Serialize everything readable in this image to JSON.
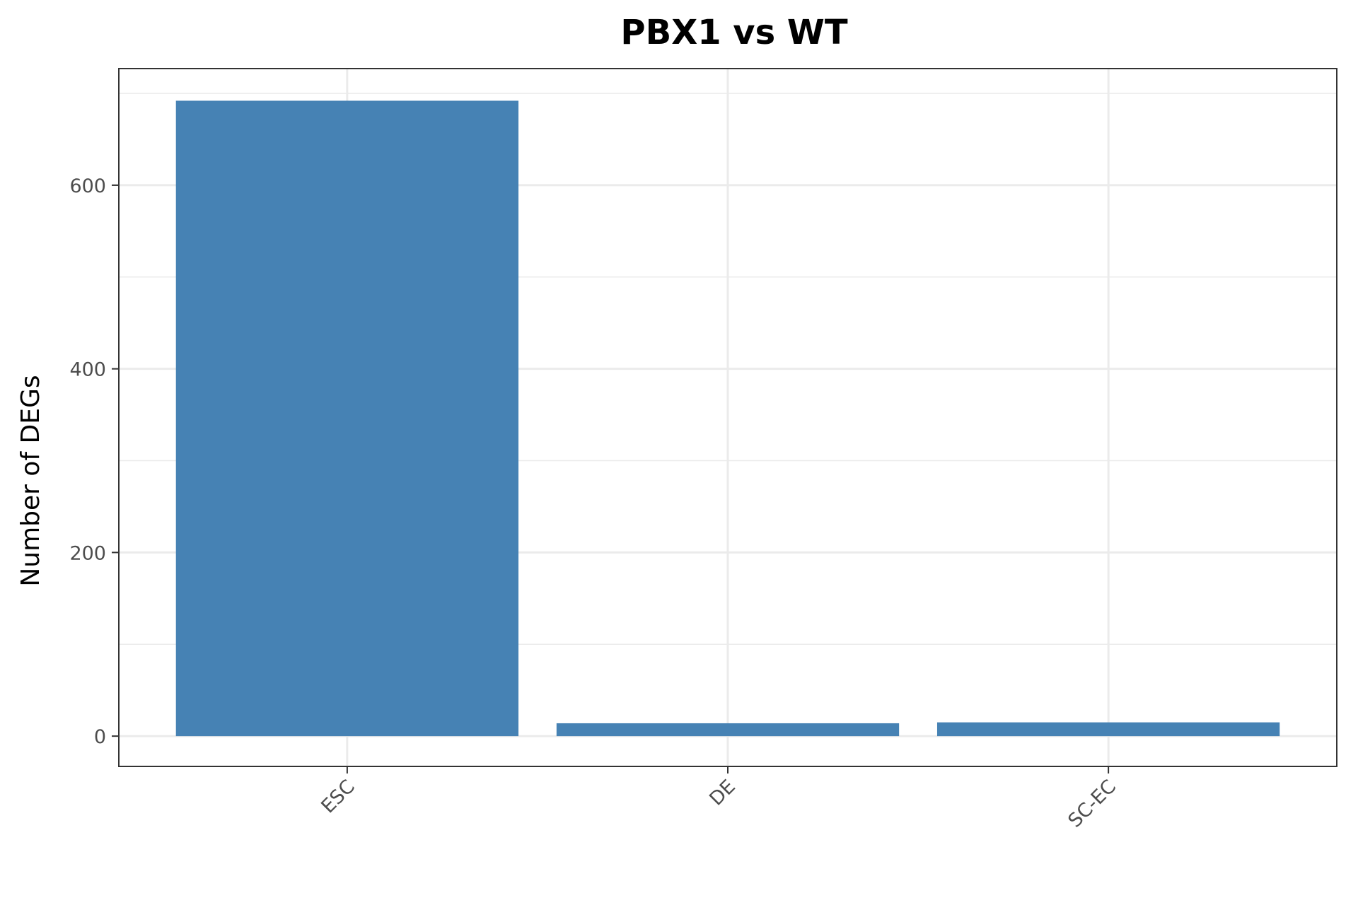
{
  "chart_data": {
    "type": "bar",
    "title": "PBX1 vs WT",
    "xlabel": "",
    "ylabel": "Number of DEGs",
    "categories": [
      "ESC",
      "DE",
      "SC-EC"
    ],
    "values": [
      692,
      14,
      15
    ],
    "ylim": [
      -33,
      727
    ],
    "yticks": [
      0,
      200,
      400,
      600
    ],
    "ytick_labels": [
      "0",
      "200",
      "400",
      "600"
    ],
    "grid": true,
    "legend": "none",
    "x_tick_rotation": 45,
    "bar_color": "#4682B4",
    "grid_color": "#EBEBEB",
    "panel_border_color": "#333333"
  }
}
